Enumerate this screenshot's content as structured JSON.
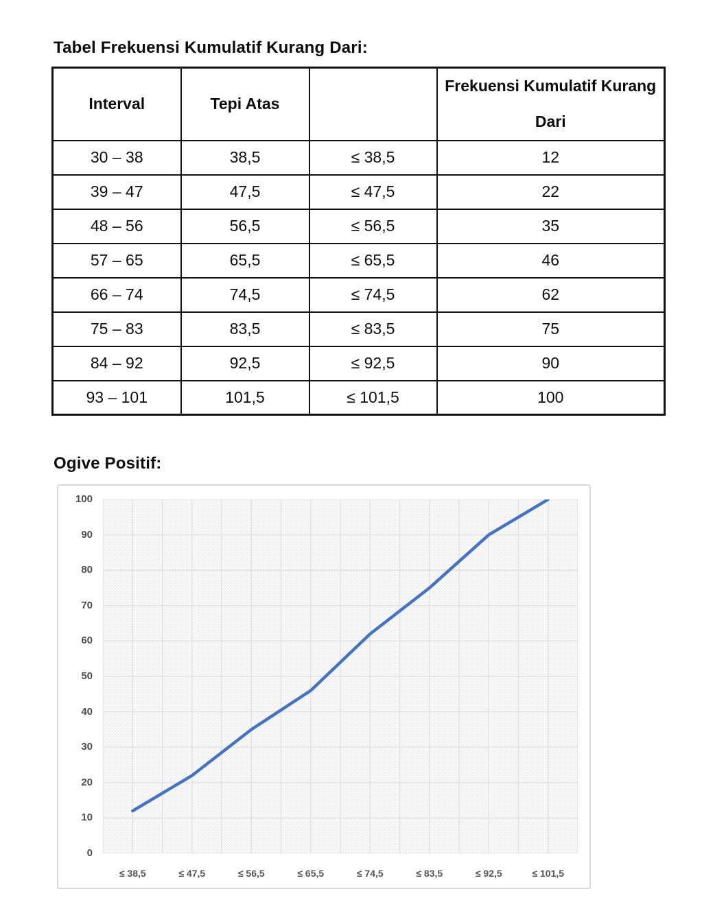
{
  "page": {
    "table_title": "Tabel Frekuensi Kumulatif Kurang Dari:",
    "chart_title": "Ogive Positif:"
  },
  "table": {
    "headers": [
      "Interval",
      "Tepi Atas",
      "",
      "Frekuensi Kumulatif Kurang Dari"
    ],
    "rows": [
      [
        "30 – 38",
        "38,5",
        "≤ 38,5",
        "12"
      ],
      [
        "39 – 47",
        "47,5",
        "≤ 47,5",
        "22"
      ],
      [
        "48 – 56",
        "56,5",
        "≤ 56,5",
        "35"
      ],
      [
        "57 – 65",
        "65,5",
        "≤ 65,5",
        "46"
      ],
      [
        "66 – 74",
        "74,5",
        "≤ 74,5",
        "62"
      ],
      [
        "75 – 83",
        "83,5",
        "≤ 83,5",
        "75"
      ],
      [
        "84 – 92",
        "92,5",
        "≤ 92,5",
        "90"
      ],
      [
        "93 – 101",
        "101,5",
        "≤ 101,5",
        "100"
      ]
    ]
  },
  "chart_data": {
    "type": "line",
    "title": "Ogive Positif",
    "categories": [
      "≤ 38,5",
      "≤ 47,5",
      "≤ 56,5",
      "≤ 65,5",
      "≤ 74,5",
      "≤ 83,5",
      "≤ 92,5",
      "≤ 101,5"
    ],
    "values": [
      12,
      22,
      35,
      46,
      62,
      75,
      90,
      100
    ],
    "xlabel": "",
    "ylabel": "",
    "ylim": [
      0,
      100
    ],
    "yticks": [
      0,
      10,
      20,
      30,
      40,
      50,
      60,
      70,
      80,
      90,
      100
    ],
    "grid": true,
    "legend": "none",
    "line_color": "#4472C4",
    "grid_color": "#e0e0e0",
    "hatch_color": "#e9e9e9",
    "axis_text_color": "#545454"
  }
}
